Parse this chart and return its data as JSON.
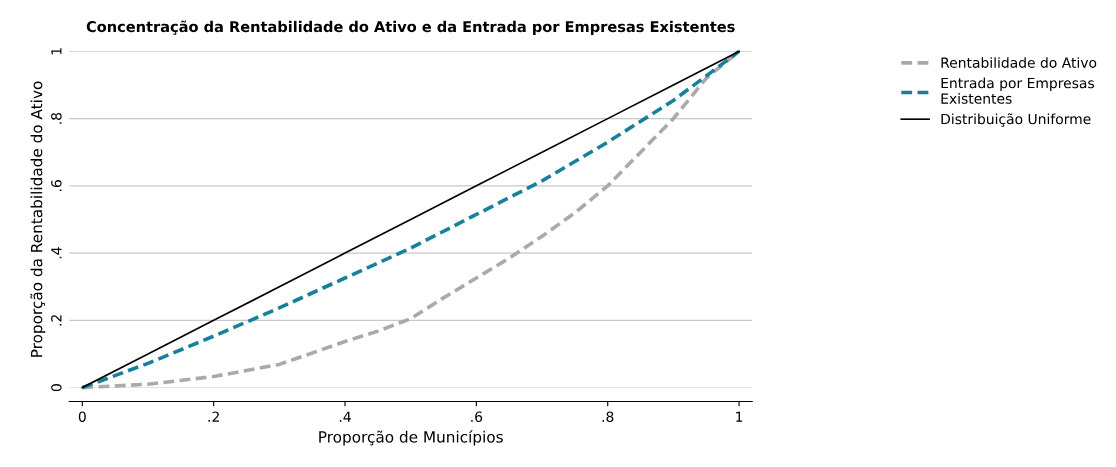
{
  "chart_data": {
    "type": "line",
    "title": "Concentração da Rentabilidade do Ativo e da Entrada por Empresas Existentes",
    "xlabel": "Proporção de Municípios",
    "ylabel": "Proporção da Rentabilidade do Ativo",
    "x": [
      0,
      0.1,
      0.2,
      0.3,
      0.4,
      0.5,
      0.6,
      0.7,
      0.8,
      0.9,
      1
    ],
    "series": [
      {
        "name": "Rentabilidade do Ativo",
        "color": "#aaaaaa",
        "line_style": "dashed",
        "x": [
          0,
          0.1,
          0.2,
          0.3,
          0.4,
          0.45,
          0.5,
          0.55,
          0.6,
          0.65,
          0.7,
          0.75,
          0.8,
          0.85,
          0.9,
          0.95,
          1
        ],
        "values": [
          0,
          0.01,
          0.033,
          0.069,
          0.137,
          0.168,
          0.205,
          0.267,
          0.326,
          0.385,
          0.45,
          0.52,
          0.6,
          0.7,
          0.8,
          0.92,
          1
        ]
      },
      {
        "name": "Entrada por Empresas Existentes",
        "color": "#17819b",
        "line_style": "dashed",
        "values": [
          0,
          0.072,
          0.153,
          0.237,
          0.326,
          0.415,
          0.515,
          0.615,
          0.73,
          0.854,
          1
        ]
      },
      {
        "name": "Distribuição Uniforme",
        "color": "#000000",
        "line_style": "solid",
        "values": [
          0,
          0.1,
          0.2,
          0.3,
          0.4,
          0.5,
          0.6,
          0.7,
          0.8,
          0.9,
          1
        ]
      }
    ],
    "xlim": [
      -0.02,
      1.02
    ],
    "ylim": [
      0,
      1
    ],
    "xticks": [
      0,
      {
        "value": 0.2,
        "label": ".2"
      },
      {
        "value": 0.4,
        "label": ".4"
      },
      {
        "value": 0.6,
        "label": ".6"
      },
      {
        "value": 0.8,
        "label": ".8"
      },
      1
    ],
    "yticks": [
      0,
      {
        "value": 0.2,
        "label": ".2"
      },
      {
        "value": 0.4,
        "label": ".4"
      },
      {
        "value": 0.6,
        "label": ".6"
      },
      {
        "value": 0.8,
        "label": ".8"
      },
      1
    ],
    "grid": "y",
    "legend": "right",
    "marker": "none"
  }
}
